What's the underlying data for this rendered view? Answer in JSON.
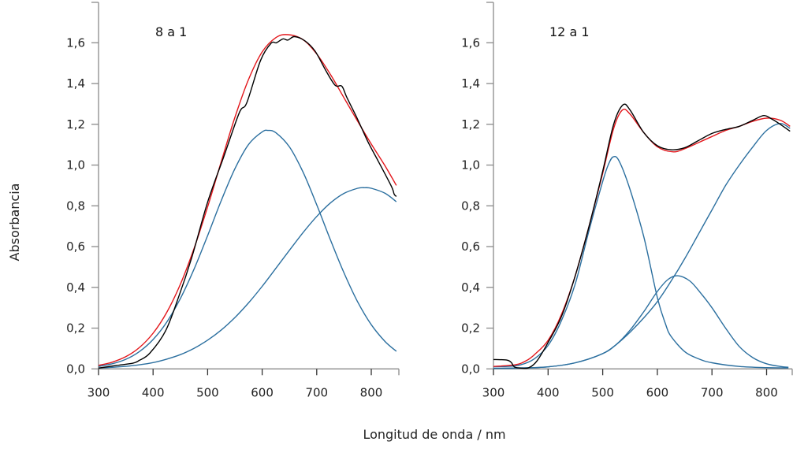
{
  "chart_data": {
    "ylabel": "Absorbancia",
    "xlabel": "Longitud de onda / nm",
    "colors": {
      "experimental": "#000000",
      "fit": "#e3161b",
      "component": "#2b6f9f",
      "axis": "#8a8a8a"
    },
    "panels": [
      {
        "type": "line",
        "label": "8 a 1",
        "xlim": [
          300,
          850
        ],
        "ylim": [
          0,
          1.6
        ],
        "xticks": [
          300,
          400,
          500,
          600,
          700,
          800
        ],
        "xtick_labels": [
          "300",
          "400",
          "500",
          "600",
          "700",
          "800"
        ],
        "yticks": [
          0,
          0.2,
          0.4,
          0.6,
          0.8,
          1.0,
          1.2,
          1.4,
          1.6
        ],
        "ytick_labels": [
          "0,0",
          "0,2",
          "0,4",
          "0,6",
          "0,8",
          "1,0",
          "1,2",
          "1,4",
          "1,6"
        ],
        "series": [
          {
            "role": "component",
            "points": [
              [
                300,
                0.012
              ],
              [
                325,
                0.025
              ],
              [
                350,
                0.047
              ],
              [
                375,
                0.085
              ],
              [
                400,
                0.144
              ],
              [
                425,
                0.229
              ],
              [
                450,
                0.345
              ],
              [
                475,
                0.489
              ],
              [
                500,
                0.654
              ],
              [
                525,
                0.826
              ],
              [
                550,
                0.982
              ],
              [
                575,
                1.101
              ],
              [
                600,
                1.163
              ],
              [
                611,
                1.17
              ],
              [
                625,
                1.159
              ],
              [
                650,
                1.089
              ],
              [
                675,
                0.965
              ],
              [
                700,
                0.805
              ],
              [
                725,
                0.634
              ],
              [
                750,
                0.471
              ],
              [
                775,
                0.329
              ],
              [
                800,
                0.217
              ],
              [
                825,
                0.135
              ],
              [
                846,
                0.086
              ]
            ]
          },
          {
            "role": "component",
            "points": [
              [
                300,
                0.0045
              ],
              [
                325,
                0.0076
              ],
              [
                350,
                0.0125
              ],
              [
                375,
                0.02
              ],
              [
                400,
                0.031
              ],
              [
                425,
                0.048
              ],
              [
                450,
                0.07
              ],
              [
                475,
                0.101
              ],
              [
                500,
                0.141
              ],
              [
                525,
                0.191
              ],
              [
                550,
                0.252
              ],
              [
                575,
                0.324
              ],
              [
                600,
                0.405
              ],
              [
                625,
                0.493
              ],
              [
                650,
                0.582
              ],
              [
                675,
                0.669
              ],
              [
                700,
                0.748
              ],
              [
                725,
                0.814
              ],
              [
                750,
                0.861
              ],
              [
                775,
                0.886
              ],
              [
                788,
                0.889
              ],
              [
                800,
                0.886
              ],
              [
                825,
                0.862
              ],
              [
                846,
                0.82
              ]
            ]
          },
          {
            "role": "fit",
            "points": [
              [
                300,
                0.017
              ],
              [
                325,
                0.033
              ],
              [
                350,
                0.06
              ],
              [
                375,
                0.105
              ],
              [
                400,
                0.175
              ],
              [
                425,
                0.277
              ],
              [
                450,
                0.415
              ],
              [
                475,
                0.59
              ],
              [
                500,
                0.795
              ],
              [
                525,
                1.017
              ],
              [
                550,
                1.234
              ],
              [
                575,
                1.42
              ],
              [
                600,
                1.555
              ],
              [
                625,
                1.625
              ],
              [
                647,
                1.64
              ],
              [
                675,
                1.615
              ],
              [
                700,
                1.545
              ],
              [
                725,
                1.445
              ],
              [
                750,
                1.33
              ],
              [
                775,
                1.215
              ],
              [
                800,
                1.103
              ],
              [
                825,
                0.997
              ],
              [
                846,
                0.9
              ]
            ]
          },
          {
            "role": "experimental",
            "points": [
              [
                300,
                0.004
              ],
              [
                333,
                0.017
              ],
              [
                363,
                0.028
              ],
              [
                375,
                0.042
              ],
              [
                394,
                0.077
              ],
              [
                423,
                0.187
              ],
              [
                447,
                0.354
              ],
              [
                471,
                0.547
              ],
              [
                500,
                0.818
              ],
              [
                529,
                1.037
              ],
              [
                558,
                1.256
              ],
              [
                572,
                1.307
              ],
              [
                597,
                1.513
              ],
              [
                616,
                1.597
              ],
              [
                626,
                1.6
              ],
              [
                638,
                1.619
              ],
              [
                647,
                1.613
              ],
              [
                659,
                1.63
              ],
              [
                678,
                1.61
              ],
              [
                697,
                1.559
              ],
              [
                717,
                1.462
              ],
              [
                734,
                1.391
              ],
              [
                746,
                1.387
              ],
              [
                755,
                1.333
              ],
              [
                774,
                1.23
              ],
              [
                794,
                1.114
              ],
              [
                813,
                1.018
              ],
              [
                837,
                0.895
              ],
              [
                842,
                0.857
              ],
              [
                846,
                0.846
              ]
            ]
          }
        ]
      },
      {
        "type": "line",
        "label": "12 a 1",
        "xlim": [
          300,
          843
        ],
        "ylim": [
          0,
          1.6
        ],
        "xticks": [
          300,
          400,
          500,
          600,
          700,
          800
        ],
        "xtick_labels": [
          "300",
          "400",
          "500",
          "600",
          "700",
          "800"
        ],
        "yticks": [
          0,
          0.2,
          0.4,
          0.6,
          0.8,
          1.0,
          1.2,
          1.4,
          1.6
        ],
        "ytick_labels": [
          "0,0",
          "0,2",
          "0,4",
          "0,6",
          "0,8",
          "1,0",
          "1,2",
          "1,4",
          "1,6"
        ],
        "series": [
          {
            "role": "component",
            "points": [
              [
                300,
                0.012
              ],
              [
                325,
                0.012
              ],
              [
                350,
                0.02
              ],
              [
                375,
                0.05
              ],
              [
                400,
                0.115
              ],
              [
                425,
                0.24
              ],
              [
                450,
                0.42
              ],
              [
                475,
                0.68
              ],
              [
                500,
                0.92
              ],
              [
                510,
                1.0
              ],
              [
                519,
                1.04
              ],
              [
                530,
                1.02
              ],
              [
                550,
                0.88
              ],
              [
                575,
                0.65
              ],
              [
                600,
                0.35
              ],
              [
                615,
                0.22
              ],
              [
                625,
                0.16
              ],
              [
                650,
                0.085
              ],
              [
                675,
                0.05
              ],
              [
                700,
                0.03
              ],
              [
                750,
                0.012
              ],
              [
                800,
                0.006
              ],
              [
                840,
                0.005
              ]
            ]
          },
          {
            "role": "component",
            "points": [
              [
                300,
                0.003
              ],
              [
                350,
                0.004
              ],
              [
                400,
                0.01
              ],
              [
                450,
                0.03
              ],
              [
                500,
                0.075
              ],
              [
                525,
                0.12
              ],
              [
                550,
                0.19
              ],
              [
                575,
                0.28
              ],
              [
                600,
                0.38
              ],
              [
                620,
                0.44
              ],
              [
                638,
                0.457
              ],
              [
                660,
                0.43
              ],
              [
                680,
                0.37
              ],
              [
                700,
                0.3
              ],
              [
                725,
                0.2
              ],
              [
                750,
                0.11
              ],
              [
                775,
                0.055
              ],
              [
                800,
                0.025
              ],
              [
                825,
                0.012
              ],
              [
                840,
                0.008
              ]
            ]
          },
          {
            "role": "component",
            "points": [
              [
                300,
                0.003
              ],
              [
                350,
                0.005
              ],
              [
                400,
                0.01
              ],
              [
                450,
                0.03
              ],
              [
                500,
                0.075
              ],
              [
                525,
                0.12
              ],
              [
                550,
                0.18
              ],
              [
                575,
                0.25
              ],
              [
                600,
                0.33
              ],
              [
                625,
                0.43
              ],
              [
                650,
                0.54
              ],
              [
                675,
                0.66
              ],
              [
                700,
                0.78
              ],
              [
                725,
                0.9
              ],
              [
                750,
                1.0
              ],
              [
                775,
                1.09
              ],
              [
                800,
                1.17
              ],
              [
                825,
                1.204
              ],
              [
                843,
                1.18
              ]
            ]
          },
          {
            "role": "fit",
            "points": [
              [
                300,
                0.012
              ],
              [
                340,
                0.02
              ],
              [
                360,
                0.04
              ],
              [
                375,
                0.07
              ],
              [
                400,
                0.14
              ],
              [
                425,
                0.27
              ],
              [
                450,
                0.46
              ],
              [
                475,
                0.7
              ],
              [
                500,
                0.96
              ],
              [
                520,
                1.18
              ],
              [
                536,
                1.27
              ],
              [
                550,
                1.25
              ],
              [
                575,
                1.16
              ],
              [
                600,
                1.09
              ],
              [
                628,
                1.065
              ],
              [
                650,
                1.08
              ],
              [
                675,
                1.11
              ],
              [
                700,
                1.14
              ],
              [
                725,
                1.17
              ],
              [
                750,
                1.19
              ],
              [
                775,
                1.215
              ],
              [
                800,
                1.23
              ],
              [
                825,
                1.22
              ],
              [
                843,
                1.19
              ]
            ]
          },
          {
            "role": "experimental",
            "points": [
              [
                300,
                0.046
              ],
              [
                325,
                0.043
              ],
              [
                333,
                0.03
              ],
              [
                338,
                0.01
              ],
              [
                350,
                0.004
              ],
              [
                365,
                0.006
              ],
              [
                380,
                0.04
              ],
              [
                400,
                0.13
              ],
              [
                425,
                0.26
              ],
              [
                450,
                0.46
              ],
              [
                475,
                0.7
              ],
              [
                500,
                0.97
              ],
              [
                520,
                1.2
              ],
              [
                537,
                1.295
              ],
              [
                550,
                1.27
              ],
              [
                575,
                1.16
              ],
              [
                600,
                1.095
              ],
              [
                625,
                1.075
              ],
              [
                650,
                1.085
              ],
              [
                675,
                1.12
              ],
              [
                700,
                1.155
              ],
              [
                725,
                1.175
              ],
              [
                750,
                1.19
              ],
              [
                775,
                1.22
              ],
              [
                795,
                1.243
              ],
              [
                810,
                1.225
              ],
              [
                825,
                1.2
              ],
              [
                843,
                1.166
              ]
            ]
          }
        ]
      }
    ]
  }
}
